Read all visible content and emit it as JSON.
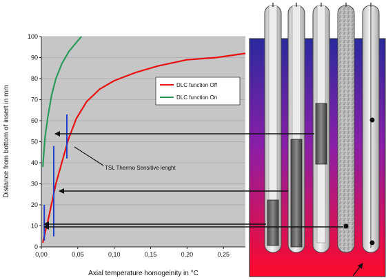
{
  "chart_data": {
    "type": "line",
    "xlabel": "Axial temperature homogeinity in °C",
    "ylabel": "Distance from bottom of insert in mm",
    "xlim": [
      0,
      0.28
    ],
    "ylim": [
      0,
      100
    ],
    "x_ticks": [
      "0,00",
      "0,05",
      "0,10",
      "0,15",
      "0,20",
      "0,25"
    ],
    "x_tick_values": [
      0,
      0.05,
      0.1,
      0.15,
      0.2,
      0.25
    ],
    "y_ticks": [
      "0",
      "10",
      "20",
      "30",
      "40",
      "50",
      "60",
      "70",
      "80",
      "90",
      "100"
    ],
    "y_tick_values": [
      0,
      10,
      20,
      30,
      40,
      50,
      60,
      70,
      80,
      90,
      100
    ],
    "grid": true,
    "legend_position": "right",
    "series": [
      {
        "name": "DLC function Off",
        "color": "#e81010",
        "points": [
          [
            0.002,
            2
          ],
          [
            0.006,
            8
          ],
          [
            0.01,
            14
          ],
          [
            0.015,
            22
          ],
          [
            0.02,
            30
          ],
          [
            0.028,
            40
          ],
          [
            0.037,
            51
          ],
          [
            0.048,
            61
          ],
          [
            0.062,
            69
          ],
          [
            0.08,
            75
          ],
          [
            0.1,
            79
          ],
          [
            0.13,
            83
          ],
          [
            0.16,
            86
          ],
          [
            0.2,
            89
          ],
          [
            0.24,
            90
          ],
          [
            0.28,
            92
          ]
        ]
      },
      {
        "name": "DLC function On",
        "color": "#2a9a5a",
        "points": [
          [
            0.002,
            38
          ],
          [
            0.005,
            52
          ],
          [
            0.009,
            62
          ],
          [
            0.014,
            72
          ],
          [
            0.02,
            80
          ],
          [
            0.028,
            87
          ],
          [
            0.038,
            93
          ],
          [
            0.05,
            98
          ],
          [
            0.055,
            100
          ]
        ]
      }
    ],
    "tsl_markers": [
      {
        "x": 0.004,
        "low": 3,
        "high": 20
      },
      {
        "x": 0.017,
        "low": 5,
        "high": 48
      },
      {
        "x": 0.035,
        "low": 42,
        "high": 63
      }
    ],
    "annotation": "TSL Thermo Sensitive lenght"
  }
}
